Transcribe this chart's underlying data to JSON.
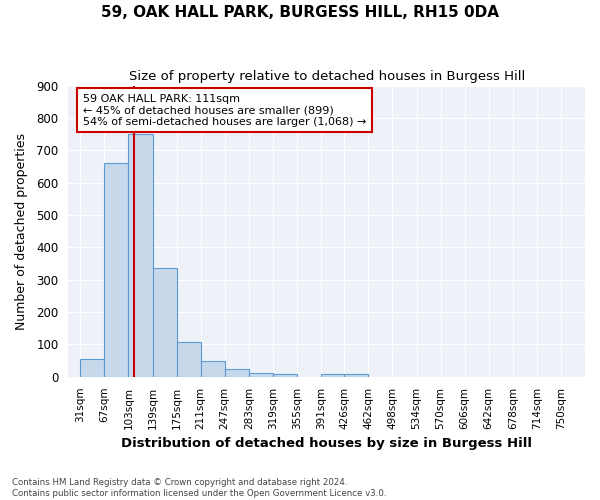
{
  "title": "59, OAK HALL PARK, BURGESS HILL, RH15 0DA",
  "subtitle": "Size of property relative to detached houses in Burgess Hill",
  "xlabel": "Distribution of detached houses by size in Burgess Hill",
  "ylabel": "Number of detached properties",
  "bin_labels": [
    "31sqm",
    "67sqm",
    "103sqm",
    "139sqm",
    "175sqm",
    "211sqm",
    "247sqm",
    "283sqm",
    "319sqm",
    "355sqm",
    "391sqm",
    "426sqm",
    "462sqm",
    "498sqm",
    "534sqm",
    "570sqm",
    "606sqm",
    "642sqm",
    "678sqm",
    "714sqm",
    "750sqm"
  ],
  "bin_edges": [
    31,
    67,
    103,
    139,
    175,
    211,
    247,
    283,
    319,
    355,
    391,
    426,
    462,
    498,
    534,
    570,
    606,
    642,
    678,
    714,
    750
  ],
  "bar_heights": [
    55,
    660,
    750,
    335,
    107,
    50,
    25,
    13,
    10,
    0,
    10,
    10,
    0,
    0,
    0,
    0,
    0,
    0,
    0,
    0,
    0
  ],
  "bar_color": "#c8d8eb",
  "bar_edge_color": "#5b9bd5",
  "property_line_x": 111,
  "property_line_color": "#cc0000",
  "annotation_text": "59 OAK HALL PARK: 111sqm\n← 45% of detached houses are smaller (899)\n54% of semi-detached houses are larger (1,068) →",
  "annotation_box_color": "#cc0000",
  "ylim": [
    0,
    900
  ],
  "yticks": [
    0,
    100,
    200,
    300,
    400,
    500,
    600,
    700,
    800,
    900
  ],
  "background_color": "#eef2f8",
  "grid_color": "#ffffff",
  "fig_background": "#ffffff",
  "footer_line1": "Contains HM Land Registry data © Crown copyright and database right 2024.",
  "footer_line2": "Contains public sector information licensed under the Open Government Licence v3.0."
}
